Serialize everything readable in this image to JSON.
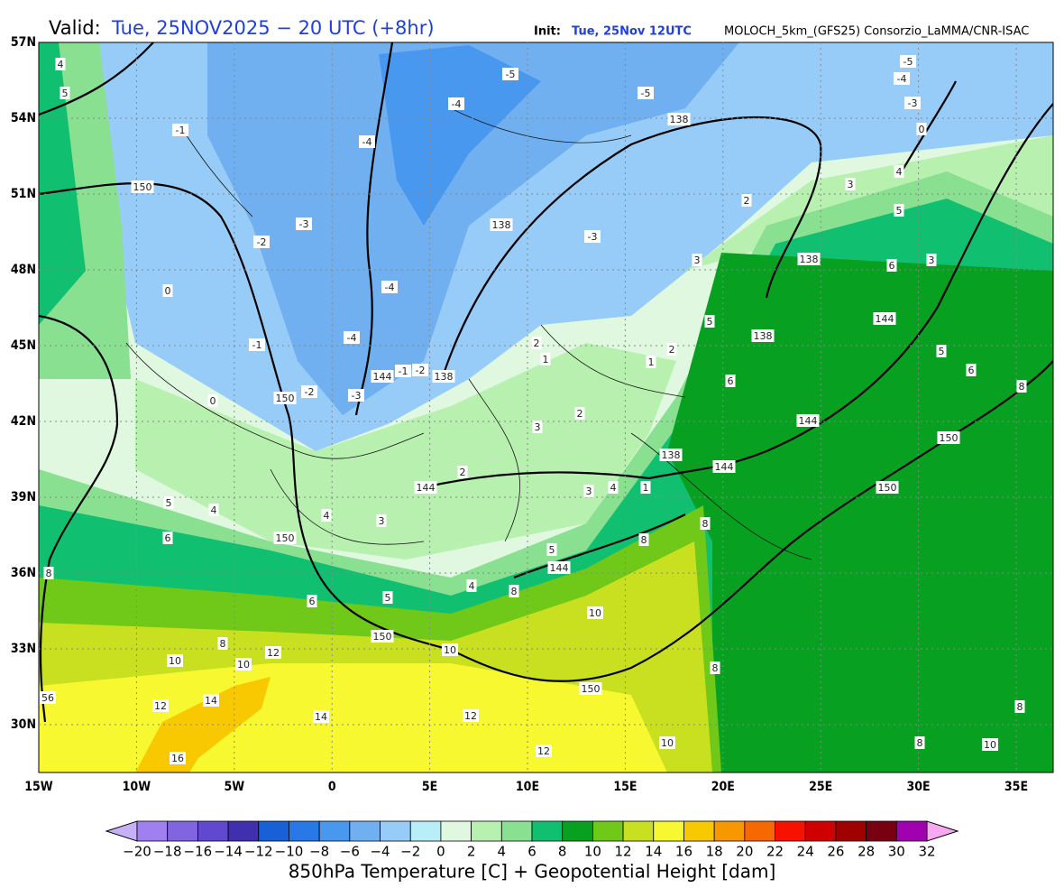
{
  "header": {
    "valid_label": "Valid:",
    "valid_text": "Tue, 25NOV2025 − 20 UTC (+8hr)",
    "init_label": "Init:",
    "init_text": "Tue, 25Nov 12UTC",
    "source": "MOLOCH_5km_(GFS25) Consorzio_LaMMA/CNR-ISAC"
  },
  "map": {
    "lat_labels": [
      "57N",
      "54N",
      "51N",
      "48N",
      "45N",
      "42N",
      "39N",
      "36N",
      "33N",
      "30N"
    ],
    "lon_labels": [
      "15W",
      "10W",
      "5W",
      "0",
      "5E",
      "10E",
      "15E",
      "20E",
      "25E",
      "30E",
      "35E"
    ],
    "contour_labels": [
      "4",
      "5",
      "-1",
      "150",
      "-3",
      "-2",
      "0",
      "-1",
      "0",
      "150",
      "-2",
      "-3",
      "-4",
      "-4",
      "-5",
      "-5",
      "138",
      "-3",
      "-4",
      "-5",
      "0",
      "138",
      "-3",
      "-4",
      "-4",
      "144",
      "-1",
      "-2",
      "138",
      "144",
      "2",
      "3",
      "4",
      "5",
      "4",
      "6",
      "150",
      "8",
      "6",
      "5",
      "4",
      "8",
      "144",
      "5",
      "150",
      "10",
      "10",
      "150",
      "12",
      "10",
      "10",
      "8",
      "14",
      "12",
      "56",
      "14",
      "12",
      "12",
      "16",
      "10",
      "8",
      "8",
      "8",
      "144",
      "138",
      "144",
      "150",
      "150",
      "8",
      "6",
      "5",
      "144",
      "6",
      "3",
      "5",
      "4",
      "3",
      "2",
      "138",
      "138",
      "3",
      "5",
      "2",
      "1",
      "6",
      "2",
      "1",
      "3",
      "2",
      "3",
      "4",
      "1",
      "10",
      "8",
      "8"
    ]
  },
  "colorbar": {
    "title": "850hPa Temperature [C] + Geopotential Height [dam]",
    "labels": [
      "−20",
      "−18",
      "−16",
      "−14",
      "−12",
      "−10",
      "−8",
      "−6",
      "−4",
      "−2",
      "0",
      "2",
      "4",
      "6",
      "8",
      "10",
      "12",
      "14",
      "16",
      "18",
      "20",
      "22",
      "24",
      "26",
      "28",
      "30",
      "32"
    ],
    "under_color": "#c8b0f8",
    "over_color": "#f8a8f0",
    "colors": [
      "#a080f0",
      "#8064e0",
      "#6048d0",
      "#4030b0",
      "#1860d8",
      "#2878e8",
      "#4898f0",
      "#70b0f0",
      "#98ccf8",
      "#b8eef8",
      "#e0f8e0",
      "#b8f0b0",
      "#88e090",
      "#10c070",
      "#08a020",
      "#70c818",
      "#c8e020",
      "#f8f830",
      "#f8c800",
      "#f89800",
      "#f86800",
      "#f81000",
      "#d00000",
      "#a00000",
      "#780010",
      "#a000b0",
      "#f000f0"
    ]
  }
}
